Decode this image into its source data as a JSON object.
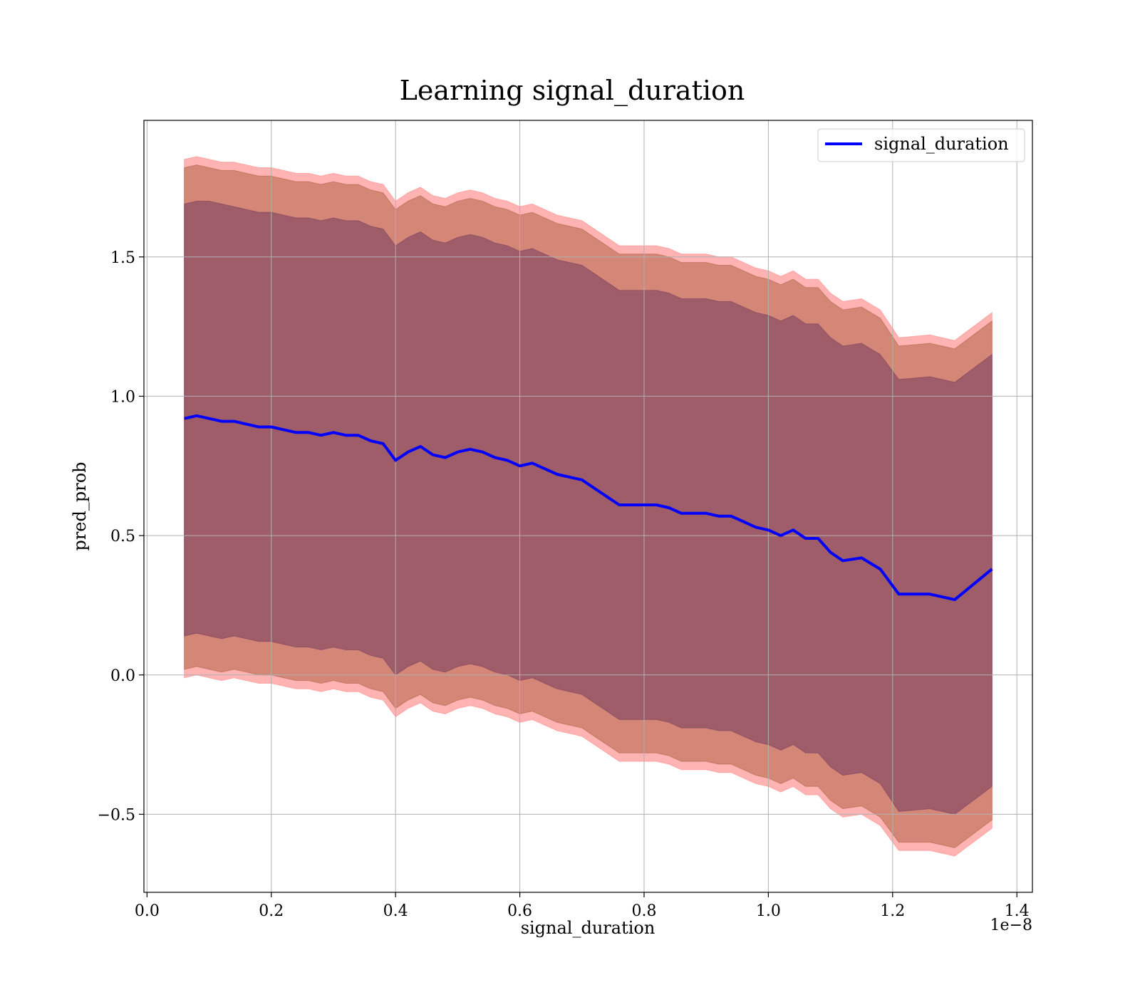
{
  "chart_data": {
    "type": "line",
    "title": "Learning signal_duration",
    "xlabel": "signal_duration",
    "ylabel": "pred_prob",
    "x_offset_text": "1e−8",
    "xlim": [
      -0.005,
      1.425
    ],
    "ylim": [
      -0.78,
      1.99
    ],
    "x_ticks": [
      0.0,
      0.2,
      0.4,
      0.6,
      0.8,
      1.0,
      1.2,
      1.4
    ],
    "x_tick_labels": [
      "0.0",
      "0.2",
      "0.4",
      "0.6",
      "0.8",
      "1.0",
      "1.2",
      "1.4"
    ],
    "y_ticks": [
      -0.5,
      0.0,
      0.5,
      1.0,
      1.5
    ],
    "y_tick_labels": [
      "−0.5",
      "0.0",
      "0.5",
      "1.0",
      "1.5"
    ],
    "grid": true,
    "legend_position": "top-right",
    "x": [
      0.06,
      0.08,
      0.1,
      0.12,
      0.14,
      0.16,
      0.18,
      0.2,
      0.22,
      0.24,
      0.26,
      0.28,
      0.3,
      0.32,
      0.34,
      0.36,
      0.38,
      0.4,
      0.42,
      0.44,
      0.46,
      0.48,
      0.5,
      0.52,
      0.54,
      0.56,
      0.58,
      0.6,
      0.62,
      0.64,
      0.66,
      0.68,
      0.7,
      0.72,
      0.74,
      0.76,
      0.78,
      0.8,
      0.82,
      0.84,
      0.86,
      0.88,
      0.9,
      0.92,
      0.94,
      0.96,
      0.98,
      1.0,
      1.02,
      1.04,
      1.06,
      1.08,
      1.1,
      1.12,
      1.15,
      1.18,
      1.21,
      1.26,
      1.3,
      1.36
    ],
    "series": [
      {
        "name": "signal_duration",
        "color": "#0000ff",
        "values": [
          0.92,
          0.93,
          0.92,
          0.91,
          0.91,
          0.9,
          0.89,
          0.89,
          0.88,
          0.87,
          0.87,
          0.86,
          0.87,
          0.86,
          0.86,
          0.84,
          0.83,
          0.77,
          0.8,
          0.82,
          0.79,
          0.78,
          0.8,
          0.81,
          0.8,
          0.78,
          0.77,
          0.75,
          0.76,
          0.74,
          0.72,
          0.71,
          0.7,
          0.67,
          0.64,
          0.61,
          0.61,
          0.61,
          0.61,
          0.6,
          0.58,
          0.58,
          0.58,
          0.57,
          0.57,
          0.55,
          0.53,
          0.52,
          0.5,
          0.52,
          0.49,
          0.49,
          0.44,
          0.41,
          0.42,
          0.38,
          0.29,
          0.29,
          0.27,
          0.38
        ]
      }
    ],
    "bands": [
      {
        "color": "#ff9999",
        "opacity": 0.75,
        "lower": [
          -0.01,
          0.0,
          -0.01,
          -0.02,
          -0.01,
          -0.02,
          -0.03,
          -0.03,
          -0.04,
          -0.05,
          -0.05,
          -0.06,
          -0.05,
          -0.06,
          -0.06,
          -0.08,
          -0.09,
          -0.15,
          -0.12,
          -0.1,
          -0.13,
          -0.14,
          -0.12,
          -0.11,
          -0.12,
          -0.14,
          -0.15,
          -0.17,
          -0.16,
          -0.18,
          -0.2,
          -0.21,
          -0.22,
          -0.25,
          -0.28,
          -0.31,
          -0.31,
          -0.31,
          -0.31,
          -0.32,
          -0.34,
          -0.34,
          -0.34,
          -0.35,
          -0.35,
          -0.37,
          -0.39,
          -0.4,
          -0.42,
          -0.4,
          -0.43,
          -0.43,
          -0.48,
          -0.51,
          -0.5,
          -0.54,
          -0.63,
          -0.63,
          -0.65,
          -0.55
        ],
        "upper": [
          1.85,
          1.86,
          1.85,
          1.84,
          1.84,
          1.83,
          1.82,
          1.82,
          1.81,
          1.8,
          1.8,
          1.79,
          1.8,
          1.79,
          1.79,
          1.77,
          1.76,
          1.7,
          1.73,
          1.75,
          1.72,
          1.71,
          1.73,
          1.74,
          1.73,
          1.71,
          1.7,
          1.68,
          1.69,
          1.67,
          1.65,
          1.64,
          1.63,
          1.6,
          1.57,
          1.54,
          1.54,
          1.54,
          1.54,
          1.53,
          1.51,
          1.51,
          1.51,
          1.5,
          1.5,
          1.48,
          1.46,
          1.45,
          1.43,
          1.45,
          1.42,
          1.42,
          1.37,
          1.34,
          1.35,
          1.31,
          1.21,
          1.22,
          1.2,
          1.3
        ]
      },
      {
        "color": "#a0522d",
        "opacity": 0.45,
        "lower": [
          0.02,
          0.03,
          0.02,
          0.01,
          0.02,
          0.01,
          0.0,
          0.0,
          -0.01,
          -0.02,
          -0.02,
          -0.03,
          -0.02,
          -0.03,
          -0.03,
          -0.05,
          -0.06,
          -0.12,
          -0.09,
          -0.07,
          -0.1,
          -0.11,
          -0.09,
          -0.08,
          -0.09,
          -0.11,
          -0.12,
          -0.14,
          -0.13,
          -0.15,
          -0.17,
          -0.18,
          -0.19,
          -0.22,
          -0.25,
          -0.28,
          -0.28,
          -0.28,
          -0.28,
          -0.29,
          -0.31,
          -0.31,
          -0.31,
          -0.32,
          -0.32,
          -0.34,
          -0.36,
          -0.37,
          -0.39,
          -0.37,
          -0.4,
          -0.4,
          -0.45,
          -0.48,
          -0.47,
          -0.51,
          -0.6,
          -0.6,
          -0.62,
          -0.52
        ],
        "upper": [
          1.82,
          1.83,
          1.82,
          1.81,
          1.81,
          1.8,
          1.79,
          1.79,
          1.78,
          1.77,
          1.77,
          1.76,
          1.77,
          1.76,
          1.76,
          1.74,
          1.73,
          1.67,
          1.7,
          1.72,
          1.69,
          1.68,
          1.7,
          1.71,
          1.7,
          1.68,
          1.67,
          1.65,
          1.66,
          1.64,
          1.62,
          1.61,
          1.6,
          1.57,
          1.54,
          1.51,
          1.51,
          1.51,
          1.51,
          1.5,
          1.48,
          1.48,
          1.48,
          1.47,
          1.47,
          1.45,
          1.43,
          1.42,
          1.4,
          1.42,
          1.39,
          1.39,
          1.34,
          1.31,
          1.32,
          1.28,
          1.18,
          1.19,
          1.17,
          1.27
        ]
      },
      {
        "color": "#7b3f61",
        "opacity": 0.6,
        "lower": [
          0.14,
          0.15,
          0.14,
          0.13,
          0.14,
          0.13,
          0.12,
          0.12,
          0.11,
          0.1,
          0.1,
          0.09,
          0.1,
          0.09,
          0.09,
          0.07,
          0.06,
          0.0,
          0.03,
          0.05,
          0.02,
          0.01,
          0.03,
          0.04,
          0.03,
          0.01,
          0.0,
          -0.02,
          -0.01,
          -0.03,
          -0.05,
          -0.06,
          -0.07,
          -0.1,
          -0.13,
          -0.16,
          -0.16,
          -0.16,
          -0.16,
          -0.17,
          -0.19,
          -0.19,
          -0.19,
          -0.2,
          -0.2,
          -0.22,
          -0.24,
          -0.25,
          -0.27,
          -0.25,
          -0.28,
          -0.28,
          -0.33,
          -0.36,
          -0.35,
          -0.39,
          -0.49,
          -0.48,
          -0.5,
          -0.4
        ],
        "upper": [
          1.69,
          1.7,
          1.7,
          1.69,
          1.68,
          1.67,
          1.66,
          1.66,
          1.65,
          1.64,
          1.64,
          1.63,
          1.64,
          1.63,
          1.63,
          1.61,
          1.6,
          1.54,
          1.57,
          1.59,
          1.56,
          1.55,
          1.57,
          1.58,
          1.57,
          1.55,
          1.54,
          1.52,
          1.53,
          1.51,
          1.49,
          1.48,
          1.47,
          1.44,
          1.41,
          1.38,
          1.38,
          1.38,
          1.38,
          1.37,
          1.35,
          1.35,
          1.35,
          1.34,
          1.34,
          1.32,
          1.3,
          1.29,
          1.27,
          1.29,
          1.26,
          1.26,
          1.21,
          1.18,
          1.19,
          1.15,
          1.06,
          1.07,
          1.05,
          1.15
        ]
      }
    ]
  }
}
